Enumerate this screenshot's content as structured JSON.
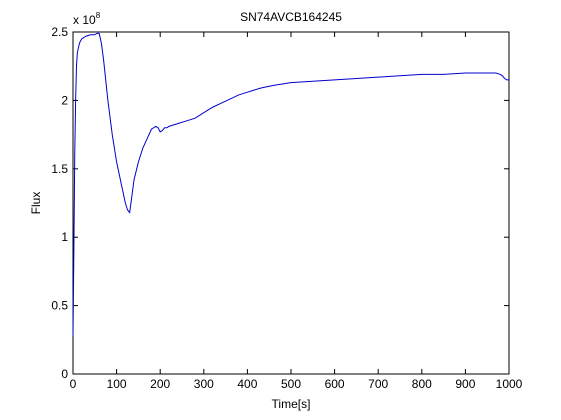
{
  "chart_data": {
    "type": "line",
    "title": "SN74AVCB164245",
    "xlabel": "Time[s]",
    "ylabel": "Flux",
    "y_exponent_label": "x 10",
    "y_exponent_power": "8",
    "xlim": [
      0,
      1000
    ],
    "ylim": [
      0,
      2.5
    ],
    "x_ticks": [
      "0",
      "100",
      "200",
      "300",
      "400",
      "500",
      "600",
      "700",
      "800",
      "900",
      "1000"
    ],
    "y_ticks": [
      "0",
      "0.5",
      "1",
      "1.5",
      "2",
      "2.5"
    ],
    "grid": false,
    "line_color": "#0000cc",
    "series": [
      {
        "x": [
          0,
          2,
          4,
          6,
          8,
          10,
          15,
          20,
          30,
          40,
          50,
          55,
          60,
          65,
          70,
          80,
          90,
          100,
          110,
          120,
          125,
          130,
          135,
          140,
          150,
          160,
          170,
          180,
          190,
          195,
          200,
          205,
          210,
          215,
          220,
          240,
          260,
          280,
          300,
          320,
          340,
          360,
          380,
          400,
          430,
          460,
          500,
          550,
          600,
          650,
          700,
          750,
          800,
          850,
          900,
          950,
          970,
          980,
          985,
          990,
          995,
          1000
        ],
        "y": [
          0.28,
          0.9,
          1.6,
          2.0,
          2.25,
          2.35,
          2.42,
          2.45,
          2.47,
          2.48,
          2.48,
          2.49,
          2.49,
          2.42,
          2.3,
          2.0,
          1.75,
          1.55,
          1.4,
          1.25,
          1.2,
          1.18,
          1.3,
          1.42,
          1.55,
          1.65,
          1.72,
          1.79,
          1.81,
          1.8,
          1.77,
          1.78,
          1.8,
          1.8,
          1.81,
          1.83,
          1.85,
          1.87,
          1.91,
          1.95,
          1.98,
          2.01,
          2.04,
          2.06,
          2.09,
          2.11,
          2.13,
          2.14,
          2.15,
          2.16,
          2.17,
          2.18,
          2.19,
          2.19,
          2.2,
          2.2,
          2.2,
          2.19,
          2.18,
          2.16,
          2.15,
          2.15
        ]
      }
    ]
  }
}
